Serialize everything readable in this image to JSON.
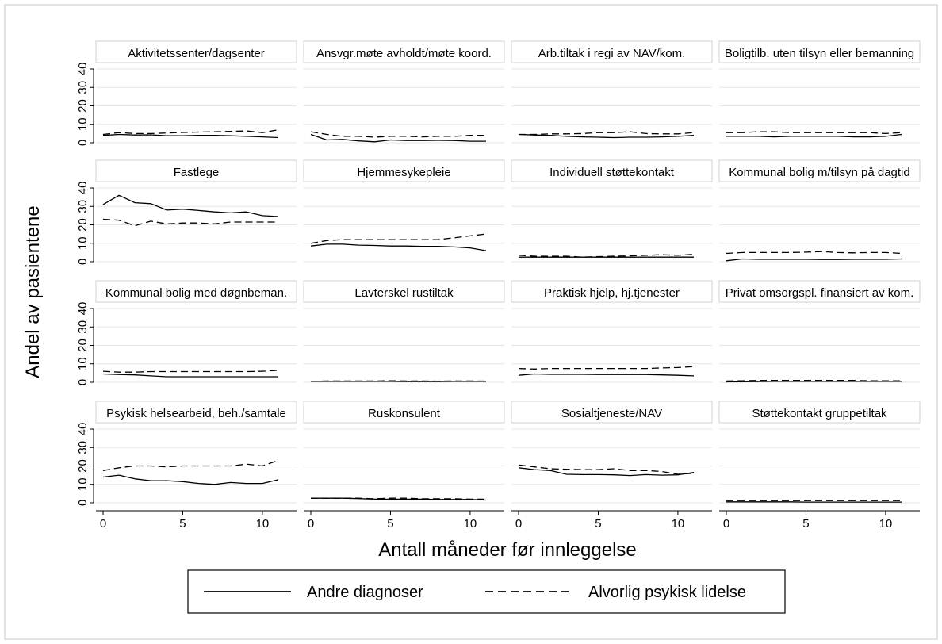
{
  "chart_data": {
    "type": "line",
    "ylabel": "Andel av pasientene",
    "xlabel": "Antall måneder før innleggelse",
    "x": [
      0,
      1,
      2,
      3,
      4,
      5,
      6,
      7,
      8,
      9,
      10,
      11
    ],
    "xticks": [
      0,
      5,
      10
    ],
    "yticks": [
      0,
      10,
      20,
      30,
      40
    ],
    "xlim": [
      0,
      11
    ],
    "ylim": [
      0,
      40
    ],
    "grid": true,
    "legend": {
      "placement": "bottom",
      "entries": [
        {
          "label": "Andre diagnoser",
          "style": "solid"
        },
        {
          "label": "Alvorlig psykisk lidelse",
          "style": "dashed"
        }
      ]
    },
    "panels": [
      {
        "title": "Aktivitetssenter/dagsenter",
        "series": [
          {
            "style": "solid",
            "values": [
              4,
              4.5,
              4.2,
              4.3,
              3.8,
              3.8,
              4,
              4,
              3.8,
              3.5,
              3.2,
              2.8
            ]
          },
          {
            "style": "dashed",
            "values": [
              4.5,
              5.5,
              5,
              5,
              5.3,
              5.6,
              5.8,
              6,
              6.2,
              6.4,
              5.5,
              7
            ]
          }
        ]
      },
      {
        "title": "Ansvgr.møte avholdt/møte koord.",
        "series": [
          {
            "style": "solid",
            "values": [
              4.5,
              1.5,
              1.8,
              1,
              0.5,
              1.5,
              1.2,
              1.2,
              1.3,
              1.2,
              0.8,
              0.8
            ]
          },
          {
            "style": "dashed",
            "values": [
              6,
              4.5,
              3.5,
              3.5,
              3,
              3.5,
              3.5,
              3.2,
              3.5,
              3.5,
              4,
              4
            ]
          }
        ]
      },
      {
        "title": "Arb.tiltak i regi av NAV/kom.",
        "series": [
          {
            "style": "solid",
            "values": [
              4.5,
              4.2,
              4,
              3.5,
              3.2,
              3,
              2.8,
              3,
              3,
              3.2,
              3.5,
              4
            ]
          },
          {
            "style": "dashed",
            "values": [
              4.5,
              4.5,
              4.8,
              4.8,
              5,
              5.5,
              5.5,
              6,
              5,
              4.8,
              4.8,
              5.5
            ]
          }
        ]
      },
      {
        "title": "Boligtilb. uten tilsyn eller bemanning",
        "series": [
          {
            "style": "solid",
            "values": [
              3.5,
              3.5,
              3.5,
              3.2,
              3.5,
              3.5,
              3.5,
              3.5,
              3.2,
              3.2,
              3.5,
              4.5
            ]
          },
          {
            "style": "dashed",
            "values": [
              5.5,
              5.5,
              6,
              6,
              5.5,
              5.5,
              5.5,
              5.5,
              5.5,
              5.5,
              5,
              5.5
            ]
          }
        ]
      },
      {
        "title": "Fastlege",
        "series": [
          {
            "style": "solid",
            "values": [
              31,
              36,
              32,
              31.5,
              28,
              28.5,
              27.8,
              27,
              26.5,
              27,
              25,
              24.5
            ]
          },
          {
            "style": "dashed",
            "values": [
              23,
              22.5,
              19.5,
              22,
              20.5,
              21,
              21,
              20.5,
              21.5,
              21.5,
              21.5,
              21.5
            ]
          }
        ]
      },
      {
        "title": "Hjemmesykepleie",
        "series": [
          {
            "style": "solid",
            "values": [
              8.5,
              9.5,
              9.5,
              9,
              8.8,
              8.5,
              8.5,
              8.3,
              8.3,
              8,
              7.5,
              6
            ]
          },
          {
            "style": "dashed",
            "values": [
              10,
              11.5,
              12,
              12,
              12,
              12,
              12,
              12,
              12,
              13,
              14,
              15
            ]
          }
        ]
      },
      {
        "title": "Individuell støttekontakt",
        "series": [
          {
            "style": "solid",
            "values": [
              2.5,
              2.5,
              2.5,
              2.5,
              2.5,
              2.5,
              2.5,
              2.5,
              2.5,
              2.5,
              2.5,
              2.5
            ]
          },
          {
            "style": "dashed",
            "values": [
              3.5,
              3,
              3,
              3,
              2.5,
              2.8,
              3,
              3.2,
              3.5,
              3.8,
              3.5,
              4
            ]
          }
        ]
      },
      {
        "title": "Kommunal bolig m/tilsyn på dagtid",
        "series": [
          {
            "style": "solid",
            "values": [
              0.5,
              1.5,
              1.3,
              1.3,
              1.3,
              1.3,
              1.2,
              1.2,
              1.3,
              1.3,
              1.3,
              1.5
            ]
          },
          {
            "style": "dashed",
            "values": [
              4.5,
              5,
              5,
              5,
              5,
              5.2,
              5.5,
              5,
              4.8,
              5,
              5,
              4.5
            ]
          }
        ]
      },
      {
        "title": "Kommunal bolig med døgnbeman.",
        "series": [
          {
            "style": "solid",
            "values": [
              4.5,
              4.2,
              4,
              3.5,
              3,
              3,
              3,
              3,
              3,
              3,
              3,
              3
            ]
          },
          {
            "style": "dashed",
            "values": [
              6,
              5.5,
              5.5,
              5.8,
              5.8,
              5.8,
              5.8,
              5.8,
              5.8,
              5.8,
              6,
              6.5
            ]
          }
        ]
      },
      {
        "title": "Lavterskel rustiltak",
        "series": [
          {
            "style": "solid",
            "values": [
              0.5,
              0.5,
              0.5,
              0.5,
              0.5,
              0.5,
              0.4,
              0.4,
              0.4,
              0.5,
              0.5,
              0.5
            ]
          },
          {
            "style": "dashed",
            "values": [
              0.5,
              0.7,
              0.7,
              0.7,
              0.7,
              0.8,
              0.7,
              0.7,
              0.6,
              0.7,
              0.7,
              0.6
            ]
          }
        ]
      },
      {
        "title": "Praktisk hjelp, hj.tjenester",
        "series": [
          {
            "style": "solid",
            "values": [
              3.8,
              4.5,
              4.3,
              4.3,
              4.3,
              4.2,
              4.2,
              4.2,
              4.2,
              4,
              3.8,
              3.5
            ]
          },
          {
            "style": "dashed",
            "values": [
              7.5,
              7.2,
              7.5,
              7.5,
              7.5,
              7.5,
              7.5,
              7.5,
              7.5,
              7.8,
              8,
              8.5
            ]
          }
        ]
      },
      {
        "title": "Privat omsorgspl. finansiert av kom.",
        "series": [
          {
            "style": "solid",
            "values": [
              0.2,
              0.3,
              0.4,
              0.5,
              0.5,
              0.5,
              0.5,
              0.5,
              0.5,
              0.5,
              0.5,
              0.5
            ]
          },
          {
            "style": "dashed",
            "values": [
              0.7,
              0.8,
              1,
              1,
              1,
              1,
              1,
              1,
              1,
              0.8,
              0.8,
              0.8
            ]
          }
        ]
      },
      {
        "title": "Psykisk helsearbeid, beh./samtale",
        "series": [
          {
            "style": "solid",
            "values": [
              14,
              15,
              13,
              12,
              12,
              11.5,
              10.5,
              10,
              11,
              10.5,
              10.5,
              12.5
            ]
          },
          {
            "style": "dashed",
            "values": [
              17.5,
              19,
              20,
              20,
              19.5,
              20,
              20,
              20,
              20,
              21,
              20,
              23
            ]
          }
        ]
      },
      {
        "title": "Ruskonsulent",
        "series": [
          {
            "style": "solid",
            "values": [
              2.5,
              2.5,
              2.5,
              2.3,
              2,
              2,
              2,
              2,
              1.8,
              1.8,
              1.8,
              1.5
            ]
          },
          {
            "style": "dashed",
            "values": [
              2.5,
              2.5,
              2.5,
              2.5,
              2.2,
              2.5,
              2.5,
              2.2,
              2.2,
              2.2,
              2,
              2
            ]
          }
        ]
      },
      {
        "title": "Sosialtjeneste/NAV",
        "series": [
          {
            "style": "solid",
            "values": [
              19,
              18,
              17.5,
              15.5,
              15.3,
              15.3,
              15.2,
              14.8,
              15.3,
              15,
              15.2,
              16.5
            ]
          },
          {
            "style": "dashed",
            "values": [
              20.5,
              19.5,
              18.5,
              18.2,
              18,
              18,
              18.5,
              17.5,
              17.5,
              17,
              15.5,
              16
            ]
          }
        ]
      },
      {
        "title": "Støttekontakt gruppetiltak",
        "series": [
          {
            "style": "solid",
            "values": [
              0.5,
              0.5,
              0.5,
              0.5,
              0.5,
              0.4,
              0.4,
              0.4,
              0.4,
              0.4,
              0.4,
              0.4
            ]
          },
          {
            "style": "dashed",
            "values": [
              1.2,
              1.2,
              1.2,
              1.2,
              1.2,
              1.2,
              1.2,
              1.2,
              1.2,
              1.2,
              1.2,
              1.2
            ]
          }
        ]
      }
    ]
  }
}
